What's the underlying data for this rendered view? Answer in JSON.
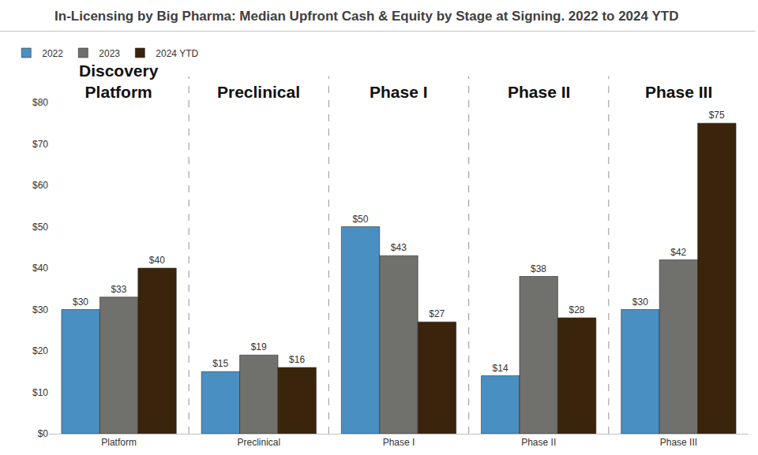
{
  "chart_data": {
    "type": "bar",
    "title": "In-Licensing by Big Pharma: Median Upfront Cash & Equity by Stage at Signing. 2022 to 2024 YTD",
    "categories": [
      "Platform",
      "Preclinical",
      "Phase I",
      "Phase II",
      "Phase III"
    ],
    "annotations": [
      "Discovery\nPlatform",
      "Preclinical",
      "Phase I",
      "Phase II",
      "Phase III"
    ],
    "series": [
      {
        "name": "2022",
        "color": "#4a8fc2",
        "values": [
          30,
          15,
          50,
          14,
          30
        ],
        "value_labels": [
          "$30",
          "$15",
          "$50",
          "$14",
          "$30"
        ]
      },
      {
        "name": "2023",
        "color": "#70706d",
        "values": [
          33,
          19,
          43,
          38,
          42
        ],
        "value_labels": [
          "$33",
          "$19",
          "$43",
          "$38",
          "$42"
        ]
      },
      {
        "name": "2024 YTD",
        "color": "#3b240c",
        "values": [
          40,
          16,
          27,
          28,
          75
        ],
        "value_labels": [
          "$40",
          "$16",
          "$27",
          "$28",
          "$75"
        ]
      }
    ],
    "ylim": [
      0,
      80
    ],
    "yticks": [
      {
        "value": 0,
        "label": "$0"
      },
      {
        "value": 10,
        "label": "$10"
      },
      {
        "value": 20,
        "label": "$20"
      },
      {
        "value": 30,
        "label": "$30"
      },
      {
        "value": 40,
        "label": "$40"
      },
      {
        "value": 50,
        "label": "$50"
      },
      {
        "value": 60,
        "label": "$60"
      },
      {
        "value": 70,
        "label": "$70"
      },
      {
        "value": 80,
        "label": "$80"
      }
    ],
    "grid": false,
    "legend": "top-left",
    "data_labels": true
  }
}
